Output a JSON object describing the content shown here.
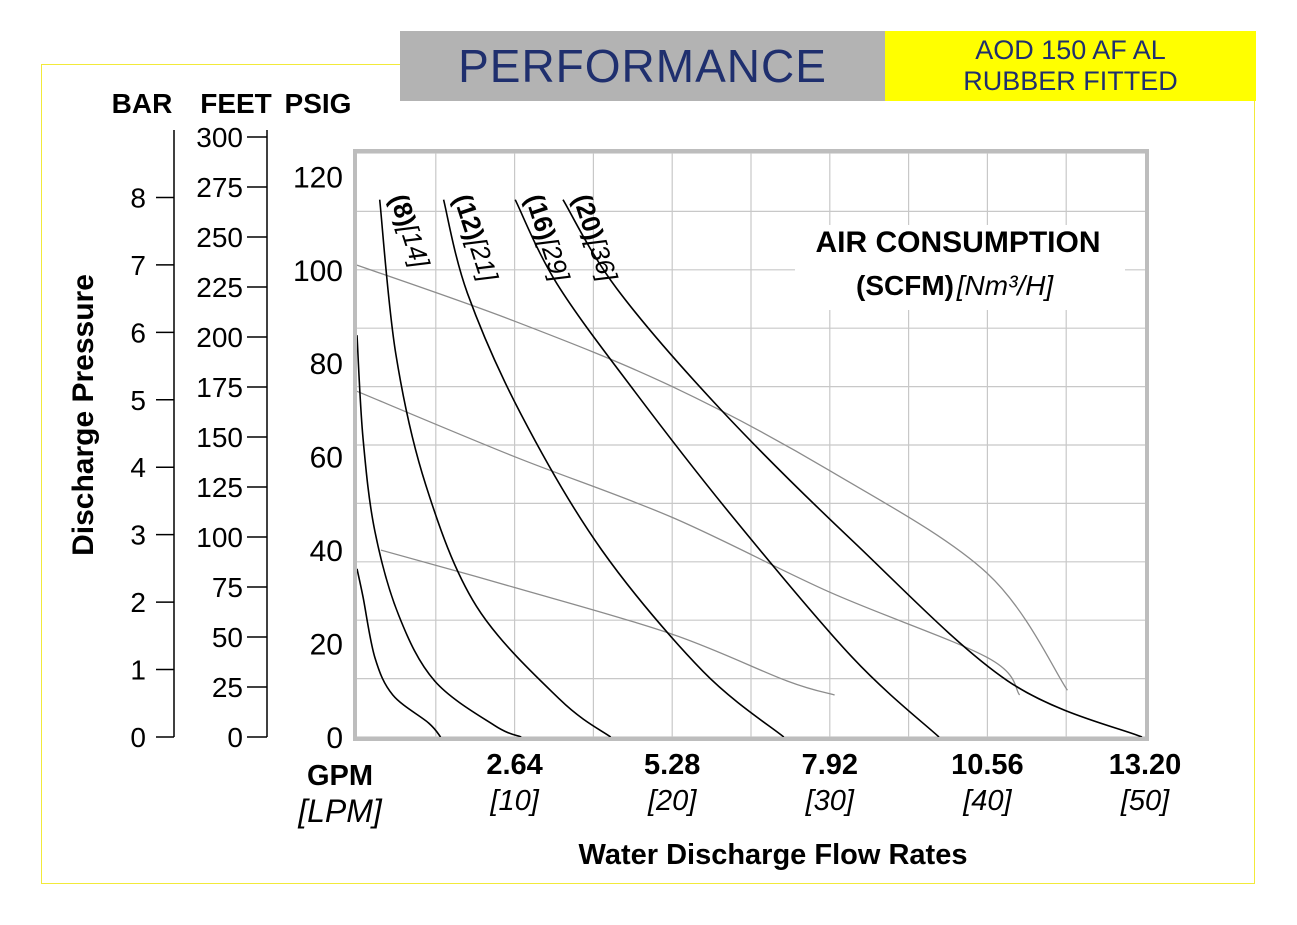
{
  "header": {
    "title": "PERFORMANCE",
    "model_line1": "AOD 150 AF AL",
    "model_line2": "RUBBER FITTED"
  },
  "colors": {
    "frame": "#f2ea3a",
    "title_bg": "#b3b3b3",
    "title_text": "#1f2f6e",
    "model_bg": "#ffff00",
    "grid": "#c8c8c8",
    "curve": "#000000",
    "npsh_curve": "#8c8c8c"
  },
  "chart_data": {
    "type": "line",
    "title": "",
    "xlabel": "Water Discharge Flow Rates",
    "ylabel": "Discharge Pressure",
    "x_unit_label": "GPM",
    "x_unit_label_secondary": "[LPM]",
    "xlim": [
      0,
      13.2
    ],
    "ylim": [
      0,
      125
    ],
    "grid": true,
    "x_ticks": [
      {
        "value": 2.64,
        "label": "2.64",
        "secondary": "[10]"
      },
      {
        "value": 5.28,
        "label": "5.28",
        "secondary": "[20]"
      },
      {
        "value": 7.92,
        "label": "7.92",
        "secondary": "[30]"
      },
      {
        "value": 10.56,
        "label": "10.56",
        "secondary": "[40]"
      },
      {
        "value": 13.2,
        "label": "13.20",
        "secondary": "[50]"
      }
    ],
    "x_grid": [
      1.32,
      2.64,
      3.96,
      5.28,
      6.6,
      7.92,
      9.24,
      10.56,
      11.88
    ],
    "psig_ticks": [
      0,
      20,
      40,
      60,
      80,
      100,
      120
    ],
    "psig_grid": [
      0,
      12.5,
      25,
      37.5,
      50,
      62.5,
      75,
      87.5,
      100,
      112.5,
      125
    ],
    "pressure_scales": [
      {
        "name": "BAR",
        "ticks": [
          0,
          1,
          2,
          3,
          4,
          5,
          6,
          7,
          8
        ]
      },
      {
        "name": "FEET",
        "ticks": [
          0,
          25,
          50,
          75,
          100,
          125,
          150,
          175,
          200,
          225,
          250,
          275,
          300
        ]
      },
      {
        "name": "PSIG",
        "ticks": [
          0,
          20,
          40,
          60,
          80,
          100,
          120
        ]
      }
    ],
    "air_consumption_title": "AIR CONSUMPTION",
    "air_consumption_units": "(SCFM)",
    "air_consumption_units_metric": "[Nm³/H]",
    "series": [
      {
        "kind": "capacity",
        "values": [
          [
            0.0,
            36
          ],
          [
            0.1,
            30
          ],
          [
            0.3,
            17
          ],
          [
            0.6,
            9
          ],
          [
            1.2,
            3
          ],
          [
            1.4,
            0
          ]
        ]
      },
      {
        "kind": "capacity",
        "values": [
          [
            0.0,
            86
          ],
          [
            0.1,
            64
          ],
          [
            0.3,
            44
          ],
          [
            0.7,
            26
          ],
          [
            1.3,
            12
          ],
          [
            2.3,
            2.5
          ],
          [
            2.75,
            0
          ]
        ]
      },
      {
        "name": "(8)[14]",
        "values": [
          [
            0.38,
            115
          ],
          [
            0.65,
            82
          ],
          [
            1.15,
            54
          ],
          [
            2.0,
            28
          ],
          [
            3.4,
            8
          ],
          [
            4.25,
            0
          ]
        ]
      },
      {
        "name": "(12)[21]",
        "values": [
          [
            1.45,
            115
          ],
          [
            1.85,
            95
          ],
          [
            2.75,
            69
          ],
          [
            4.1,
            40
          ],
          [
            5.8,
            14
          ],
          [
            7.15,
            0
          ]
        ]
      },
      {
        "name": "(16)[29]",
        "values": [
          [
            2.65,
            115
          ],
          [
            3.35,
            97
          ],
          [
            4.65,
            74
          ],
          [
            6.3,
            47
          ],
          [
            8.3,
            17
          ],
          [
            9.75,
            0
          ]
        ]
      },
      {
        "name": "(20)[36]",
        "values": [
          [
            3.45,
            115
          ],
          [
            4.35,
            96
          ],
          [
            6.1,
            70
          ],
          [
            8.3,
            42
          ],
          [
            10.9,
            12
          ],
          [
            13.15,
            0
          ]
        ]
      },
      {
        "kind": "npsh",
        "values": [
          [
            0.0,
            101
          ],
          [
            2.64,
            89
          ],
          [
            5.28,
            75
          ],
          [
            7.92,
            57
          ],
          [
            10.56,
            35
          ],
          [
            11.9,
            10
          ]
        ]
      },
      {
        "kind": "npsh",
        "values": [
          [
            0.0,
            74
          ],
          [
            2.64,
            60
          ],
          [
            5.28,
            47
          ],
          [
            7.92,
            31
          ],
          [
            10.56,
            17
          ],
          [
            11.1,
            9
          ]
        ]
      },
      {
        "kind": "npsh",
        "values": [
          [
            0.4,
            40
          ],
          [
            2.64,
            32
          ],
          [
            5.28,
            22
          ],
          [
            7.2,
            12
          ],
          [
            8.0,
            9
          ]
        ]
      }
    ]
  }
}
